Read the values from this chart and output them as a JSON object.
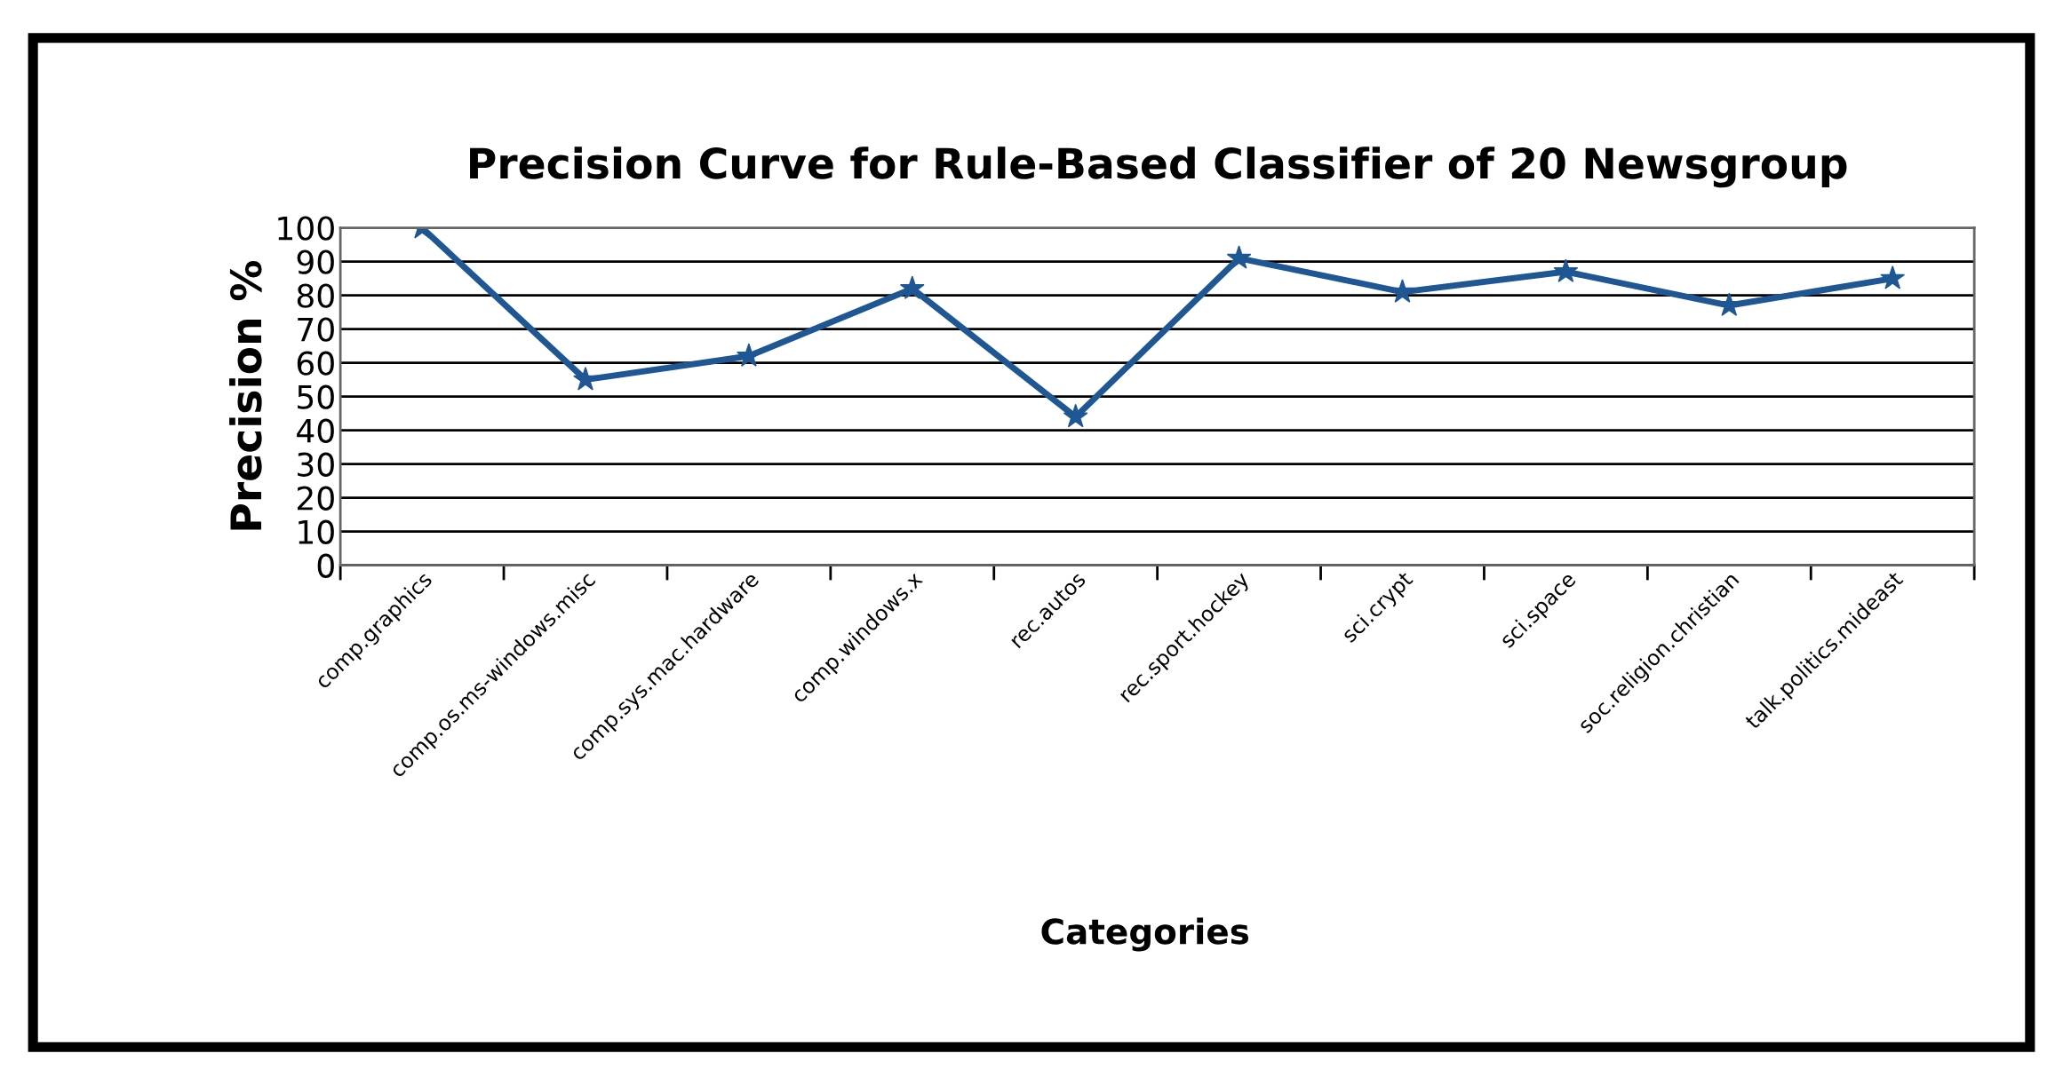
{
  "chart_data": {
    "type": "line",
    "title": "Precision Curve for Rule-Based Classifier of 20 Newsgroup",
    "xlabel": "Categories",
    "ylabel": "Precision %",
    "categories": [
      "comp.graphics",
      "comp.os.ms-windows.misc",
      "comp.sys.mac.hardware",
      "comp.windows.x",
      "rec.autos",
      "rec.sport.hockey",
      "sci.crypt",
      "sci.space",
      "soc.religion.christian",
      "talk.politics.mideast"
    ],
    "series": [
      {
        "color": "#1f5694",
        "values": [
          100,
          55,
          62,
          82,
          44,
          91,
          81,
          87,
          77,
          85
        ]
      }
    ],
    "ylim": [
      0,
      100
    ],
    "yticks": [
      0,
      10,
      20,
      30,
      40,
      50,
      60,
      70,
      80,
      90,
      100
    ],
    "grid": "y",
    "legend": false,
    "marker": "star",
    "line_style": "solid"
  }
}
